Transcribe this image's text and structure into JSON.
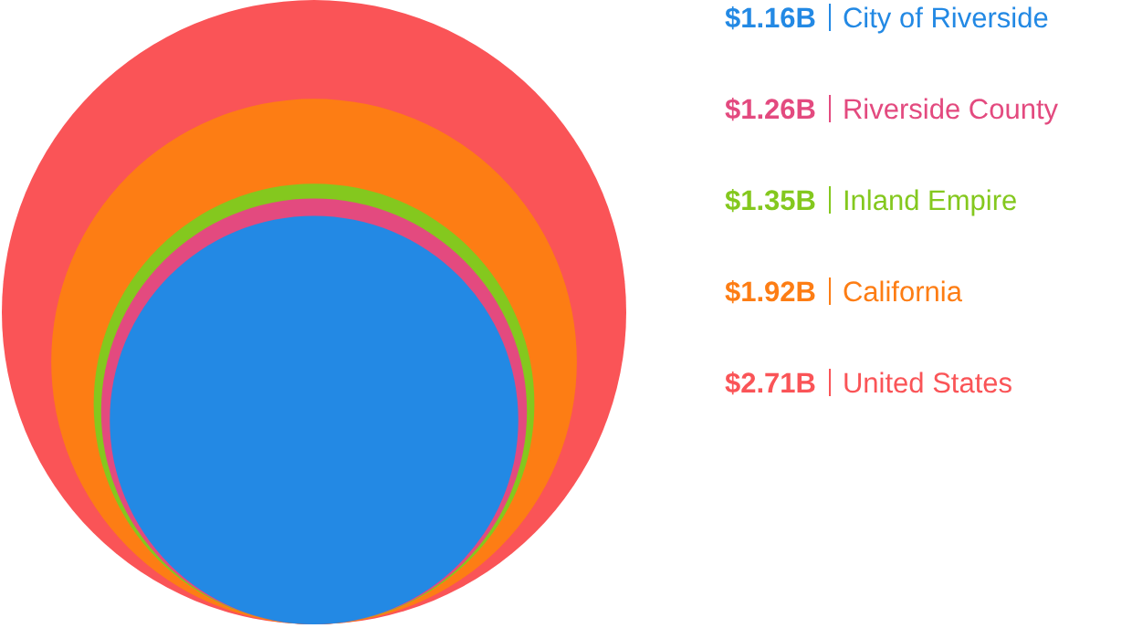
{
  "chart_data": {
    "type": "other",
    "categories": [
      "City of Riverside",
      "Riverside County",
      "Inland Empire",
      "California",
      "United States"
    ],
    "values": [
      1.16,
      1.26,
      1.35,
      1.92,
      2.71
    ],
    "value_labels": [
      "$1.16B",
      "$1.26B",
      "$1.35B",
      "$1.92B",
      "$2.71B"
    ],
    "colors": [
      "#2389e4",
      "#e34a7f",
      "#84c81e",
      "#fd7d14",
      "#fa5457"
    ]
  }
}
